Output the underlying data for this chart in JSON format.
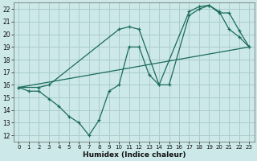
{
  "xlabel": "Humidex (Indice chaleur)",
  "background_color": "#cce8e8",
  "grid_color": "#aacccc",
  "line_color": "#1a6b5a",
  "xlim": [
    -0.5,
    23.5
  ],
  "ylim": [
    11.5,
    22.5
  ],
  "xticks": [
    0,
    1,
    2,
    3,
    4,
    5,
    6,
    7,
    8,
    9,
    10,
    11,
    12,
    13,
    14,
    15,
    16,
    17,
    18,
    19,
    20,
    21,
    22,
    23
  ],
  "yticks": [
    12,
    13,
    14,
    15,
    16,
    17,
    18,
    19,
    20,
    21,
    22
  ],
  "series1_x": [
    0,
    1,
    2,
    3,
    4,
    5,
    6,
    7,
    8,
    9,
    10,
    11,
    12,
    13,
    14,
    15,
    17,
    18,
    19,
    20,
    21,
    22,
    23
  ],
  "series1_y": [
    15.8,
    15.5,
    15.5,
    14.9,
    14.3,
    13.5,
    13.0,
    12.0,
    13.2,
    15.5,
    16.0,
    19.0,
    19.0,
    16.8,
    16.0,
    16.0,
    21.5,
    22.0,
    22.3,
    21.8,
    20.4,
    19.8,
    19.0
  ],
  "series2_x": [
    0,
    2,
    3,
    10,
    11,
    12,
    14,
    17,
    18,
    19,
    20,
    21,
    22,
    23
  ],
  "series2_y": [
    15.8,
    15.8,
    16.0,
    20.4,
    20.6,
    20.4,
    16.0,
    21.8,
    22.2,
    22.3,
    21.7,
    21.7,
    20.3,
    19.0
  ],
  "series3_x": [
    0,
    23
  ],
  "series3_y": [
    15.8,
    19.0
  ]
}
